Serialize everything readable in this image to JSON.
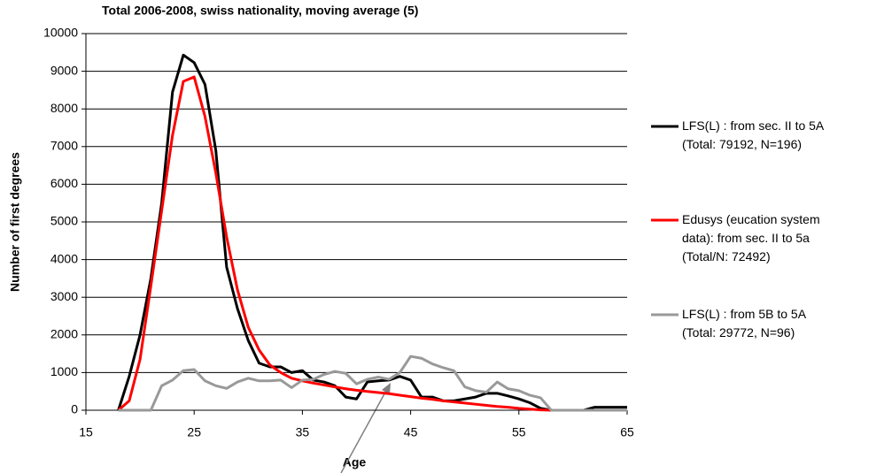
{
  "chart_data": {
    "type": "line",
    "title": "Total 2006-2008, swiss nationality, moving average (5)",
    "x_label": "Age",
    "y_label": "Number of first degrees",
    "x": [
      18,
      19,
      20,
      21,
      22,
      23,
      24,
      25,
      26,
      27,
      28,
      29,
      30,
      31,
      32,
      33,
      34,
      35,
      36,
      37,
      38,
      39,
      40,
      41,
      42,
      43,
      44,
      45,
      46,
      47,
      48,
      49,
      50,
      51,
      52,
      53,
      54,
      55,
      56,
      57,
      58,
      59,
      60,
      61,
      62,
      63,
      64,
      65
    ],
    "series": [
      {
        "name": "LFS(L) : from sec. II to 5A\n(Total: 79192, N=196)",
        "color": "#000000",
        "values": [
          0,
          900,
          2000,
          3500,
          5500,
          8450,
          9430,
          9230,
          8650,
          6900,
          3800,
          2700,
          1850,
          1250,
          1150,
          1150,
          1000,
          1050,
          800,
          750,
          650,
          350,
          300,
          750,
          780,
          800,
          900,
          800,
          350,
          350,
          250,
          250,
          300,
          350,
          450,
          450,
          380,
          300,
          200,
          50,
          0,
          0,
          0,
          0,
          80,
          80,
          80,
          80
        ]
      },
      {
        "name": "Edusys (eucation system\ndata): from sec. II to 5a\n(Total/N: 72492)",
        "color": "#ff0000",
        "values": [
          0,
          250,
          1350,
          3300,
          5300,
          7300,
          8730,
          8850,
          7800,
          6300,
          4600,
          3200,
          2200,
          1600,
          1200,
          1000,
          850,
          780,
          720,
          670,
          620,
          570,
          530,
          500,
          470,
          440,
          400,
          360,
          320,
          290,
          250,
          220,
          190,
          160,
          130,
          100,
          80,
          50,
          30,
          10,
          0,
          null,
          null,
          null,
          null,
          null,
          null,
          null
        ]
      },
      {
        "name": "LFS(L) : from 5B to 5A\n(Total: 29772, N=96)",
        "color": "#999999",
        "values": [
          0,
          0,
          0,
          0,
          650,
          800,
          1050,
          1080,
          780,
          650,
          580,
          750,
          850,
          780,
          780,
          800,
          600,
          800,
          820,
          950,
          1030,
          980,
          700,
          820,
          880,
          820,
          1000,
          1430,
          1380,
          1230,
          1130,
          1050,
          620,
          520,
          480,
          750,
          570,
          520,
          400,
          330,
          0,
          0,
          0,
          0,
          0,
          0,
          0,
          0
        ]
      }
    ],
    "xlim": [
      15,
      65
    ],
    "xticks": [
      15,
      25,
      35,
      45,
      55,
      65
    ],
    "ylim": [
      0,
      10000
    ],
    "yticks": [
      0,
      1000,
      2000,
      3000,
      4000,
      5000,
      6000,
      7000,
      8000,
      9000,
      10000
    ],
    "grid": true,
    "legend": "right"
  }
}
